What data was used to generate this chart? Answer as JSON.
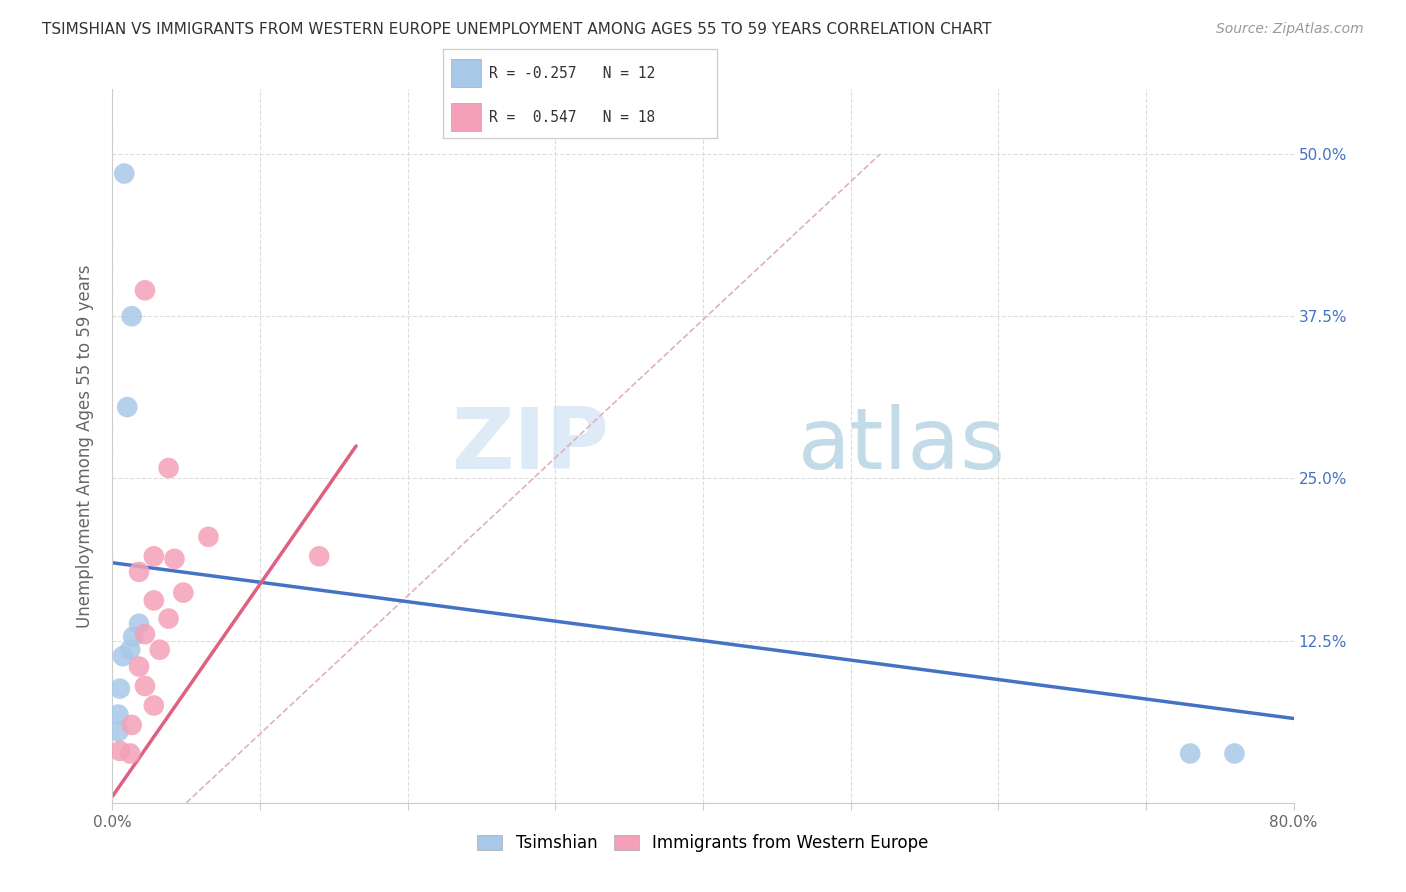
{
  "title": "TSIMSHIAN VS IMMIGRANTS FROM WESTERN EUROPE UNEMPLOYMENT AMONG AGES 55 TO 59 YEARS CORRELATION CHART",
  "source": "Source: ZipAtlas.com",
  "ylabel": "Unemployment Among Ages 55 to 59 years",
  "xlim": [
    0.0,
    0.8
  ],
  "ylim": [
    0.0,
    0.55
  ],
  "yticks": [
    0.0,
    0.125,
    0.25,
    0.375,
    0.5
  ],
  "ytick_labels": [
    "",
    "12.5%",
    "25.0%",
    "37.5%",
    "50.0%"
  ],
  "xticks": [
    0.0,
    0.1,
    0.2,
    0.3,
    0.4,
    0.5,
    0.6,
    0.7,
    0.8
  ],
  "xtick_labels": [
    "0.0%",
    "",
    "",
    "",
    "",
    "",
    "",
    "",
    "80.0%"
  ],
  "background_color": "#ffffff",
  "grid_color": "#dddddd",
  "watermark_zip": "ZIP",
  "watermark_atlas": "atlas",
  "tsimshian_color": "#a8c8e8",
  "immigrants_color": "#f4a0b8",
  "line_blue_color": "#4472c4",
  "line_pink_color": "#e06080",
  "line_dashed_color": "#e0b0c0",
  "tsimshian_points": [
    [
      0.008,
      0.485
    ],
    [
      0.013,
      0.375
    ],
    [
      0.01,
      0.305
    ],
    [
      0.018,
      0.138
    ],
    [
      0.014,
      0.128
    ],
    [
      0.012,
      0.118
    ],
    [
      0.007,
      0.113
    ],
    [
      0.005,
      0.088
    ],
    [
      0.004,
      0.068
    ],
    [
      0.004,
      0.055
    ],
    [
      0.73,
      0.038
    ],
    [
      0.76,
      0.038
    ]
  ],
  "immigrants_points": [
    [
      0.022,
      0.395
    ],
    [
      0.038,
      0.258
    ],
    [
      0.065,
      0.205
    ],
    [
      0.028,
      0.19
    ],
    [
      0.042,
      0.188
    ],
    [
      0.018,
      0.178
    ],
    [
      0.048,
      0.162
    ],
    [
      0.14,
      0.19
    ],
    [
      0.028,
      0.156
    ],
    [
      0.038,
      0.142
    ],
    [
      0.022,
      0.13
    ],
    [
      0.032,
      0.118
    ],
    [
      0.018,
      0.105
    ],
    [
      0.022,
      0.09
    ],
    [
      0.028,
      0.075
    ],
    [
      0.013,
      0.06
    ],
    [
      0.005,
      0.04
    ],
    [
      0.012,
      0.038
    ]
  ],
  "tsimshian_trend_x": [
    0.0,
    0.8
  ],
  "tsimshian_trend_y": [
    0.185,
    0.065
  ],
  "immigrants_trend_x": [
    0.0,
    0.165
  ],
  "immigrants_trend_y": [
    0.005,
    0.275
  ],
  "dashed_trend_x": [
    0.05,
    0.52
  ],
  "dashed_trend_y": [
    0.0,
    0.5
  ]
}
